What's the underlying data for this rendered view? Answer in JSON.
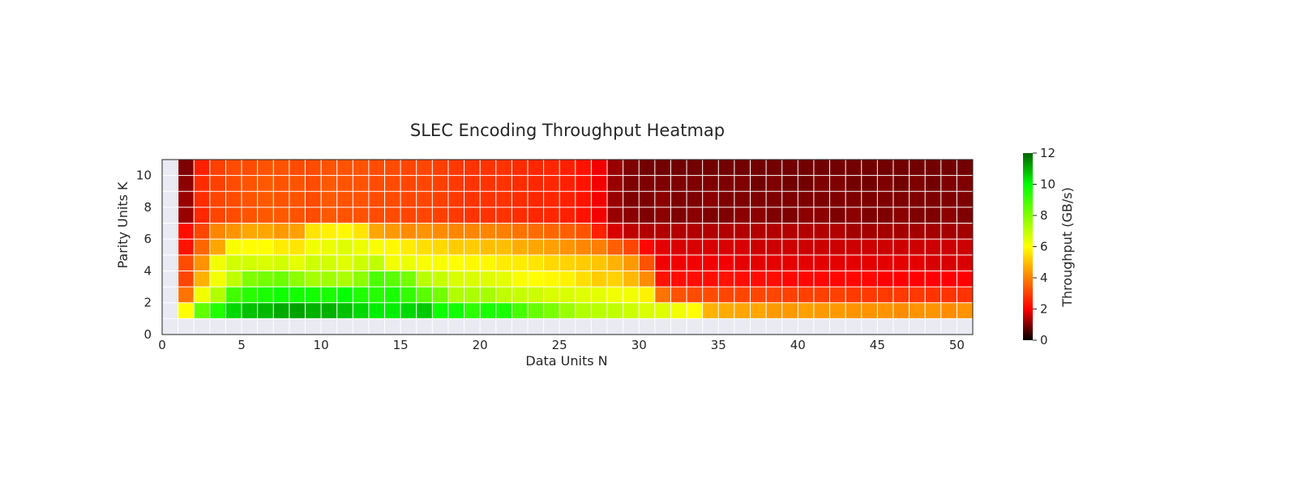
{
  "chart_data": {
    "type": "heatmap",
    "title": "SLEC Encoding Throughput Heatmap",
    "xlabel": "Data Units N",
    "ylabel": "Parity Units K",
    "xlim": [
      0,
      51
    ],
    "ylim": [
      0,
      11
    ],
    "x_ticks": [
      0,
      5,
      10,
      15,
      20,
      25,
      30,
      35,
      40,
      45,
      50
    ],
    "y_ticks": [
      0,
      2,
      4,
      6,
      8,
      10
    ],
    "colorbar": {
      "label": "Throughput (GB/s)",
      "range": [
        0,
        12
      ],
      "ticks": [
        0,
        2,
        4,
        6,
        8,
        10,
        12
      ],
      "colors": [
        "#000000",
        "#ff0000",
        "#ffff00",
        "#00ff00",
        "#006400"
      ],
      "stops": [
        0,
        0.167,
        0.5,
        0.833,
        1.0
      ]
    },
    "background_color": "#eaeaf2",
    "grid_color": "#ffffff",
    "x_start": 1,
    "y_start": 1,
    "rows": [
      {
        "k": 1,
        "values": [
          6.0,
          8.5,
          9.5,
          10.5,
          10.8,
          10.9,
          11.1,
          11.2,
          11.0,
          11.0,
          10.8,
          10.5,
          10.2,
          10.2,
          10.5,
          10.7,
          9.8,
          9.7,
          9.3,
          9.6,
          9.6,
          8.9,
          8.4,
          8.1,
          7.6,
          7.2,
          7.1,
          7.0,
          6.8,
          6.6,
          6.5,
          6.2,
          6.0,
          4.8,
          4.7,
          4.6,
          4.6,
          4.4,
          4.4,
          4.5,
          4.4,
          4.4,
          4.3,
          4.3,
          4.3,
          4.2,
          4.3,
          4.3,
          4.2,
          4.3
        ]
      },
      {
        "k": 2,
        "values": [
          3.8,
          6.2,
          7.2,
          9.0,
          9.4,
          9.6,
          9.8,
          9.7,
          9.7,
          9.6,
          9.9,
          9.5,
          9.4,
          9.6,
          9.2,
          8.6,
          8.2,
          7.2,
          7.3,
          7.4,
          7.0,
          6.9,
          6.8,
          6.6,
          6.6,
          6.5,
          6.4,
          6.2,
          6.2,
          5.8,
          3.8,
          3.3,
          3.2,
          3.2,
          3.1,
          3.1,
          3.1,
          3.1,
          3.0,
          3.0,
          3.0,
          3.0,
          2.9,
          2.9,
          2.9,
          2.9,
          2.9,
          2.8,
          2.8,
          2.8
        ]
      },
      {
        "k": 3,
        "values": [
          3.1,
          4.8,
          6.2,
          7.0,
          8.0,
          8.2,
          8.3,
          7.8,
          7.4,
          7.5,
          7.3,
          7.8,
          8.8,
          8.6,
          8.2,
          7.1,
          6.9,
          6.6,
          6.6,
          6.5,
          6.4,
          6.1,
          6.0,
          5.9,
          5.8,
          5.5,
          5.2,
          5.3,
          4.9,
          4.2,
          2.3,
          2.2,
          2.2,
          2.2,
          2.3,
          2.2,
          2.2,
          2.2,
          2.1,
          2.1,
          2.1,
          2.1,
          2.1,
          2.1,
          2.0,
          2.0,
          2.0,
          2.0,
          2.0,
          2.0
        ]
      },
      {
        "k": 4,
        "values": [
          3.2,
          4.3,
          6.2,
          6.7,
          6.7,
          6.6,
          6.7,
          6.4,
          6.8,
          6.7,
          6.5,
          6.8,
          7.0,
          6.2,
          6.3,
          6.1,
          6.1,
          6.0,
          5.9,
          5.9,
          5.7,
          5.7,
          5.6,
          5.4,
          5.3,
          5.2,
          5.1,
          4.8,
          4.4,
          3.3,
          1.9,
          1.9,
          1.9,
          1.9,
          1.9,
          1.8,
          1.8,
          1.8,
          1.8,
          1.8,
          1.8,
          1.8,
          1.8,
          1.8,
          1.8,
          1.8,
          1.8,
          1.7,
          1.7,
          1.7
        ]
      },
      {
        "k": 5,
        "values": [
          2.3,
          3.6,
          4.6,
          6.1,
          6.0,
          6.0,
          5.7,
          5.6,
          6.2,
          6.3,
          6.5,
          6.3,
          6.1,
          5.9,
          5.7,
          5.5,
          5.4,
          5.2,
          5.2,
          5.0,
          5.0,
          4.7,
          4.6,
          4.5,
          4.3,
          4.1,
          4.0,
          3.5,
          3.1,
          2.1,
          1.8,
          1.7,
          1.7,
          1.7,
          1.7,
          1.7,
          1.6,
          1.6,
          1.6,
          1.6,
          1.6,
          1.6,
          1.6,
          1.6,
          1.6,
          1.6,
          1.6,
          1.6,
          1.6,
          1.6
        ]
      },
      {
        "k": 6,
        "values": [
          2.2,
          3.1,
          4.1,
          4.3,
          4.6,
          4.6,
          4.4,
          4.5,
          5.6,
          5.8,
          5.9,
          5.6,
          4.6,
          4.4,
          4.2,
          4.3,
          4.2,
          4.1,
          4.1,
          4.1,
          4.0,
          3.8,
          3.7,
          3.6,
          3.5,
          3.3,
          2.5,
          1.7,
          1.5,
          1.4,
          1.4,
          1.4,
          1.4,
          1.4,
          1.4,
          1.4,
          1.4,
          1.4,
          1.4,
          1.4,
          1.4,
          1.4,
          1.3,
          1.3,
          1.3,
          1.3,
          1.3,
          1.3,
          1.3,
          1.3
        ]
      },
      {
        "k": 7,
        "values": [
          1.2,
          2.6,
          3.1,
          3.2,
          3.3,
          3.4,
          3.4,
          3.3,
          3.2,
          3.4,
          3.3,
          3.3,
          3.2,
          3.2,
          3.1,
          3.1,
          3.0,
          2.9,
          2.8,
          2.8,
          2.8,
          2.7,
          2.6,
          2.6,
          2.5,
          2.3,
          1.9,
          1.2,
          1.1,
          1.0,
          1.1,
          1.0,
          1.1,
          1.0,
          1.0,
          1.1,
          1.1,
          1.0,
          1.0,
          1.1,
          1.1,
          1.0,
          1.1,
          1.0,
          1.0,
          1.1,
          1.0,
          1.0,
          1.1,
          1.0
        ]
      },
      {
        "k": 8,
        "values": [
          1.2,
          2.7,
          3.1,
          3.2,
          3.3,
          3.4,
          3.3,
          3.3,
          3.2,
          3.4,
          3.3,
          3.3,
          3.2,
          3.2,
          3.1,
          3.1,
          3.0,
          2.9,
          2.8,
          2.8,
          2.8,
          2.7,
          2.6,
          2.6,
          2.5,
          2.3,
          1.9,
          1.2,
          1.0,
          1.0,
          1.1,
          1.0,
          1.0,
          1.1,
          1.0,
          1.0,
          1.0,
          1.0,
          1.0,
          1.0,
          1.0,
          1.0,
          1.0,
          1.0,
          1.0,
          1.0,
          1.0,
          1.0,
          1.0,
          1.0
        ]
      },
      {
        "k": 9,
        "values": [
          1.1,
          2.7,
          3.0,
          3.2,
          3.3,
          3.4,
          3.3,
          3.3,
          3.2,
          3.4,
          3.3,
          3.3,
          3.2,
          3.2,
          3.1,
          3.1,
          3.0,
          2.9,
          2.8,
          2.8,
          2.8,
          2.7,
          2.6,
          2.6,
          2.5,
          2.3,
          1.9,
          1.2,
          1.0,
          1.0,
          1.0,
          1.0,
          1.0,
          1.0,
          1.0,
          1.0,
          0.9,
          1.0,
          0.9,
          0.9,
          1.0,
          1.0,
          0.9,
          0.9,
          1.0,
          0.9,
          1.0,
          0.9,
          1.0,
          1.0
        ]
      },
      {
        "k": 10,
        "values": [
          1.0,
          2.5,
          3.0,
          3.2,
          3.2,
          3.3,
          3.3,
          3.2,
          3.2,
          3.3,
          3.3,
          3.3,
          3.2,
          3.2,
          3.1,
          3.1,
          3.0,
          2.9,
          2.8,
          2.8,
          2.8,
          2.7,
          2.6,
          2.6,
          2.5,
          2.3,
          1.9,
          1.2,
          1.0,
          0.9,
          0.9,
          0.9,
          0.9,
          0.9,
          0.9,
          0.9,
          0.9,
          0.9,
          0.9,
          0.9,
          0.9,
          0.9,
          0.9,
          0.9,
          0.9,
          0.9,
          0.9,
          0.9,
          0.9,
          0.9
        ]
      }
    ]
  }
}
